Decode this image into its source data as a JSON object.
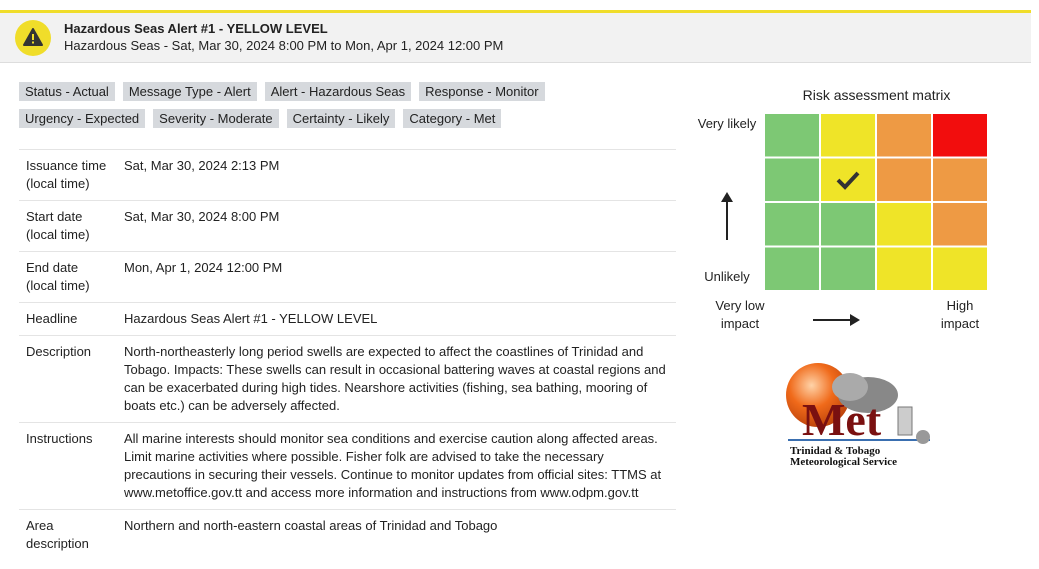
{
  "header": {
    "title": "Hazardous Seas Alert #1 - YELLOW LEVEL",
    "subtitle": "Hazardous Seas - Sat, Mar 30, 2024 8:00 PM to Mon, Apr 1, 2024 12:00 PM"
  },
  "tags": [
    [
      "Status - Actual",
      "Message Type - Alert",
      "Alert - Hazardous Seas",
      "Response - Monitor"
    ],
    [
      "Urgency - Expected",
      "Severity - Moderate",
      "Certainty - Likely",
      "Category - Met"
    ]
  ],
  "table": {
    "rows": [
      [
        "Issuance time (local time)",
        "Sat, Mar 30, 2024 2:13 PM"
      ],
      [
        "Start date (local time)",
        "Sat, Mar 30, 2024 8:00 PM"
      ],
      [
        "End date (local time)",
        "Mon, Apr 1, 2024 12:00 PM"
      ],
      [
        "Headline",
        "Hazardous Seas Alert #1 - YELLOW LEVEL"
      ],
      [
        "Description",
        "North-northeasterly long period swells are expected to affect the coastlines of Trinidad and Tobago. Impacts: These swells can result in occasional battering waves at coastal regions and can be exacerbated during high tides. Nearshore activities (fishing, sea bathing, mooring of boats etc.) can be adversely affected."
      ],
      [
        "Instructions",
        "All marine interests should monitor sea conditions and exercise caution along affected areas. Limit marine activities where possible. Fisher folk are advised to take the necessary precautions in securing their vessels. Continue to monitor updates from official sites: TTMS at www.metoffice.gov.tt and access more information and instructions from www.odpm.gov.tt"
      ],
      [
        "Area description",
        "Northern and north-eastern coastal areas of Trinidad and Tobago"
      ]
    ]
  },
  "matrix": {
    "title": "Risk assessment matrix",
    "likely": "Very likely",
    "unlikely": "Unlikely",
    "low_impact": "Very low impact",
    "high_impact": "High impact"
  },
  "logo": {
    "mark": "Met",
    "line1": "Trinidad & Tobago",
    "line2": "Meteorological Service"
  }
}
